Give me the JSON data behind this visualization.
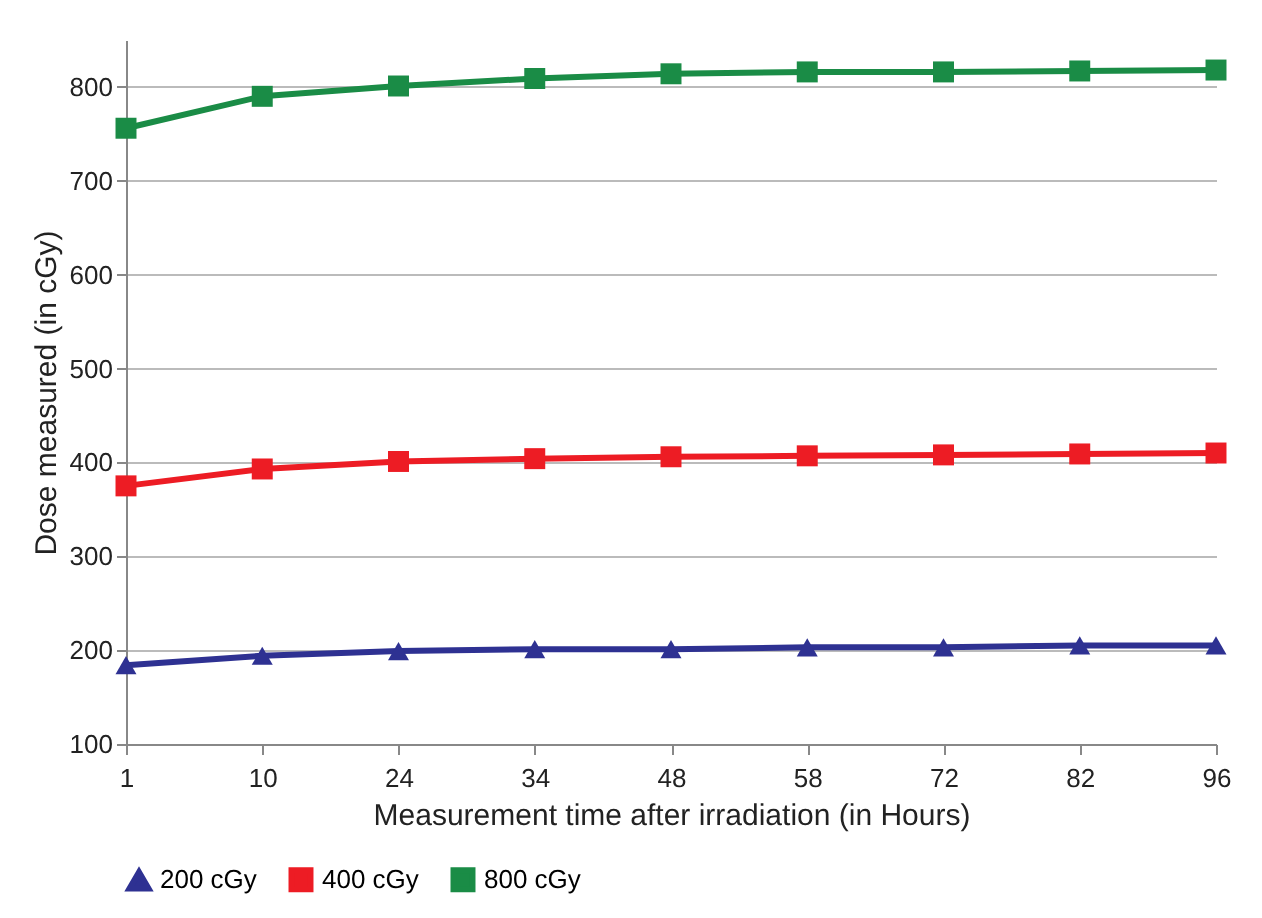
{
  "chart_data": {
    "type": "line",
    "xlabel": "Measurement time after irradiation (in Hours)",
    "ylabel": "Dose measured (in cGy)",
    "categories": [
      "1",
      "10",
      "24",
      "34",
      "48",
      "58",
      "72",
      "82",
      "96"
    ],
    "series": [
      {
        "name": "200 cGy",
        "color": "#2e3192",
        "marker": "triangle",
        "values": [
          184,
          194,
          199,
          201,
          201,
          203,
          203,
          205,
          205
        ]
      },
      {
        "name": "400 cGy",
        "color": "#ed1c24",
        "marker": "square",
        "values": [
          375,
          393,
          401,
          404,
          406,
          407,
          408,
          409,
          410
        ]
      },
      {
        "name": "800 cGy",
        "color": "#1a8c46",
        "marker": "square",
        "values": [
          756,
          790,
          801,
          809,
          814,
          816,
          816,
          817,
          818
        ]
      }
    ],
    "ylim": [
      100,
      850
    ],
    "yticks": [
      100,
      200,
      300,
      400,
      500,
      600,
      700,
      800
    ],
    "grid": "y",
    "legend": "bottom",
    "line_style": "solid"
  }
}
